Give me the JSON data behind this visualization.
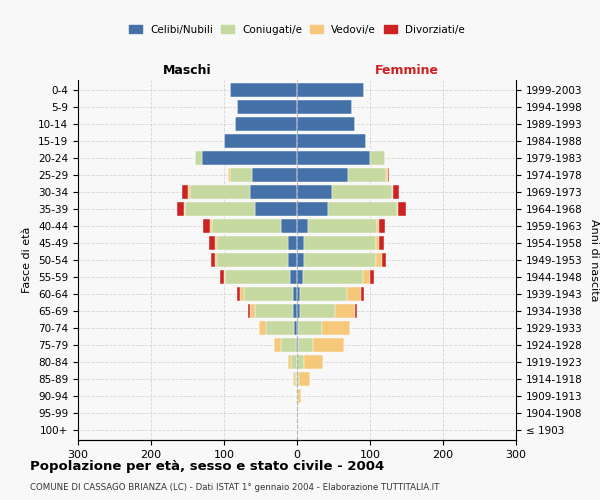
{
  "age_groups": [
    "100+",
    "95-99",
    "90-94",
    "85-89",
    "80-84",
    "75-79",
    "70-74",
    "65-69",
    "60-64",
    "55-59",
    "50-54",
    "45-49",
    "40-44",
    "35-39",
    "30-34",
    "25-29",
    "20-24",
    "15-19",
    "10-14",
    "5-9",
    "0-4"
  ],
  "birth_years": [
    "≤ 1903",
    "1904-1908",
    "1909-1913",
    "1914-1918",
    "1919-1923",
    "1924-1928",
    "1929-1933",
    "1934-1938",
    "1939-1943",
    "1944-1948",
    "1949-1953",
    "1954-1958",
    "1959-1963",
    "1964-1968",
    "1969-1973",
    "1974-1978",
    "1979-1983",
    "1984-1988",
    "1989-1993",
    "1994-1998",
    "1999-2003"
  ],
  "male_celibi": [
    0,
    0,
    0,
    0,
    0,
    2,
    4,
    5,
    5,
    10,
    12,
    12,
    22,
    58,
    65,
    62,
    130,
    100,
    85,
    82,
    92
  ],
  "male_coniugati": [
    0,
    0,
    1,
    3,
    8,
    20,
    38,
    52,
    68,
    88,
    98,
    98,
    95,
    95,
    82,
    30,
    10,
    0,
    0,
    0,
    0
  ],
  "male_vedovi": [
    0,
    0,
    0,
    2,
    5,
    10,
    10,
    8,
    5,
    2,
    2,
    2,
    2,
    2,
    2,
    2,
    0,
    0,
    0,
    0,
    0
  ],
  "male_divorziati": [
    0,
    0,
    0,
    0,
    0,
    0,
    0,
    2,
    4,
    6,
    6,
    8,
    10,
    10,
    8,
    0,
    0,
    0,
    0,
    0,
    0
  ],
  "fem_nubili": [
    0,
    0,
    0,
    0,
    0,
    2,
    2,
    4,
    4,
    8,
    10,
    10,
    15,
    42,
    48,
    70,
    100,
    95,
    80,
    75,
    92
  ],
  "fem_coniugate": [
    0,
    0,
    1,
    3,
    10,
    20,
    32,
    48,
    65,
    82,
    98,
    98,
    95,
    95,
    82,
    52,
    20,
    0,
    0,
    0,
    0
  ],
  "fem_vedove": [
    0,
    1,
    5,
    15,
    25,
    42,
    38,
    28,
    18,
    10,
    8,
    5,
    2,
    2,
    2,
    2,
    0,
    0,
    0,
    0,
    0
  ],
  "fem_divorziate": [
    0,
    0,
    0,
    0,
    0,
    0,
    0,
    2,
    5,
    5,
    6,
    6,
    8,
    10,
    8,
    2,
    0,
    0,
    0,
    0,
    0
  ],
  "colors": {
    "celibi_nubili": "#4472a8",
    "coniugati": "#c5d9a0",
    "vedovi": "#f5c87a",
    "divorziati": "#cc2222"
  },
  "title": "Popolazione per età, sesso e stato civile - 2004",
  "subtitle": "COMUNE DI CASSAGO BRIANZA (LC) - Dati ISTAT 1° gennaio 2004 - Elaborazione TUTTITALIA.IT",
  "xlabel_left": "Maschi",
  "xlabel_right": "Femmine",
  "ylabel_left": "Fasce di età",
  "ylabel_right": "Anni di nascita",
  "xlim": 300,
  "bg_color": "#f8f8f8",
  "grid_color": "#cccccc"
}
